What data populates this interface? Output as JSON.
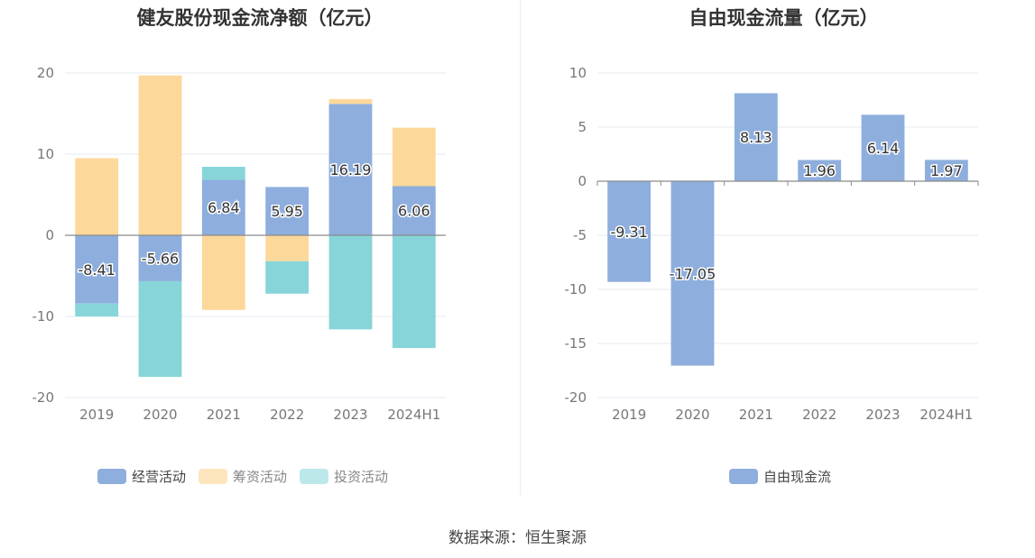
{
  "charts": {
    "left": {
      "title": "健友股份现金流净额（亿元）"
    },
    "right": {
      "title": "自由现金流量（亿元）"
    }
  },
  "source": "数据来源：恒生聚源",
  "colors": {
    "operating": "#8eaedd",
    "financing": "#fdd89b",
    "investing": "#87d5d8",
    "free_cf": "#8eaedd"
  },
  "chart_data": [
    {
      "type": "bar",
      "stacked": true,
      "title": "健友股份现金流净额（亿元）",
      "categories": [
        "2019",
        "2020",
        "2021",
        "2022",
        "2023",
        "2024H1"
      ],
      "ylim": [
        -20,
        20
      ],
      "yticks": [
        20,
        10,
        0,
        -10,
        -20
      ],
      "grid": true,
      "legend_position": "bottom",
      "series": [
        {
          "name": "经营活动",
          "color": "#8eaedd",
          "values": [
            -8.41,
            -5.66,
            6.84,
            5.95,
            16.19,
            6.06
          ],
          "labeled": true
        },
        {
          "name": "筹资活动",
          "color": "#fdd89b",
          "values": [
            9.5,
            19.7,
            -9.2,
            -3.2,
            0.6,
            7.2
          ],
          "labeled": false
        },
        {
          "name": "投资活动",
          "color": "#87d5d8",
          "values": [
            -1.6,
            -11.8,
            1.6,
            -4.0,
            -11.6,
            -13.9
          ],
          "labeled": false
        }
      ]
    },
    {
      "type": "bar",
      "title": "自由现金流量（亿元）",
      "categories": [
        "2019",
        "2020",
        "2021",
        "2022",
        "2023",
        "2024H1"
      ],
      "ylim": [
        -20,
        10
      ],
      "yticks": [
        10,
        5,
        0,
        -5,
        -10,
        -15,
        -20
      ],
      "grid": true,
      "legend_position": "bottom",
      "series": [
        {
          "name": "自由现金流",
          "color": "#8eaedd",
          "values": [
            -9.31,
            -17.05,
            8.13,
            1.96,
            6.14,
            1.97
          ],
          "labeled": true
        }
      ]
    }
  ]
}
